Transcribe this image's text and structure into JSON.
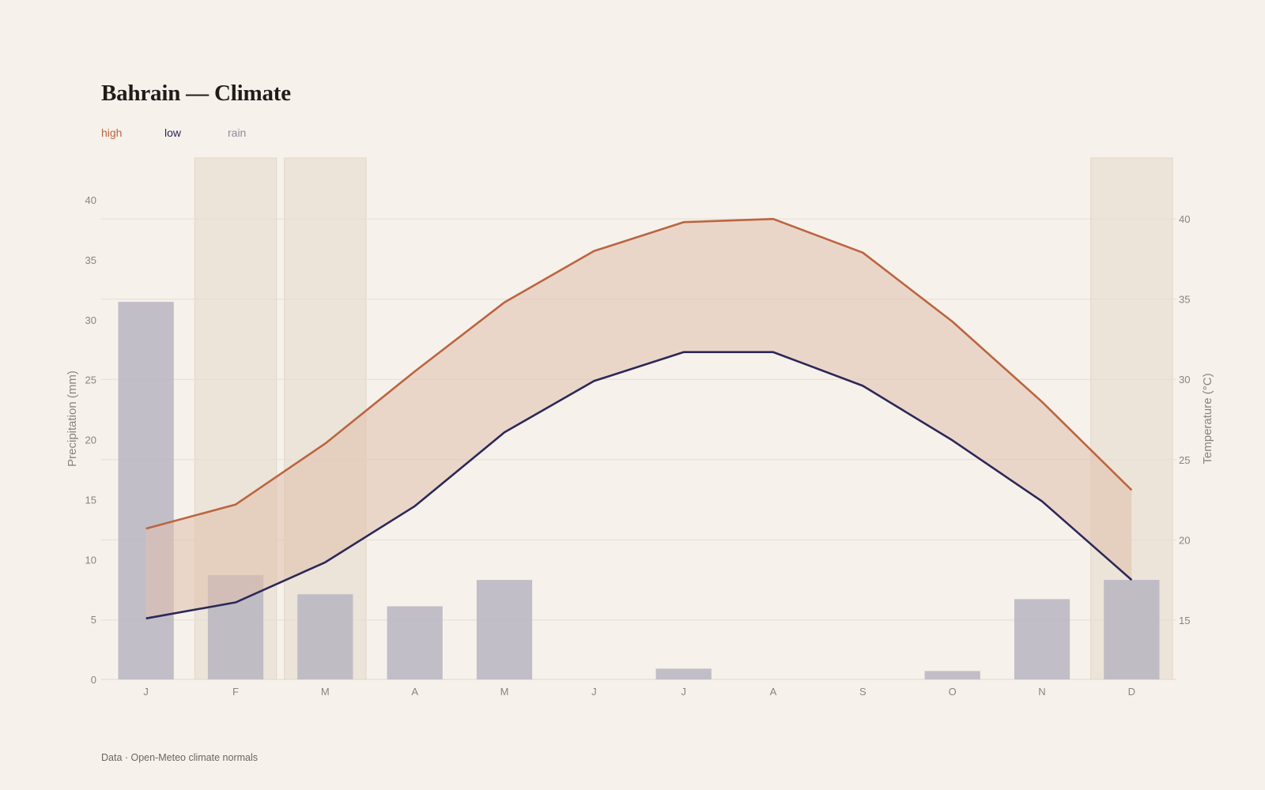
{
  "title": "Bahrain — Climate",
  "footer": "Data · Open-Meteo climate normals",
  "colors": {
    "background": "#f6f1ea",
    "high": "#bb6540",
    "low": "#2c2858",
    "rain": "#8e8aa0",
    "rain_bar": "#c2bfc7",
    "band_fill": "#e0bfad",
    "highlight": "#ece4d8",
    "grid": "#e3ddd4"
  },
  "legend": [
    {
      "label": "high",
      "color": "#bb6540"
    },
    {
      "label": "low",
      "color": "#2c2858"
    },
    {
      "label": "rain",
      "color": "#8e8aa0"
    }
  ],
  "chart_data": {
    "type": "bar+line",
    "categories": [
      "J",
      "F",
      "M",
      "A",
      "M",
      "J",
      "J",
      "A",
      "S",
      "O",
      "N",
      "D"
    ],
    "highlighted_months": [
      1,
      2,
      11
    ],
    "y_left": {
      "label": "Precipitation (mm)",
      "range": [
        0,
        43.5
      ],
      "ticks": [
        0,
        5,
        10,
        15,
        20,
        25,
        30,
        35,
        40
      ]
    },
    "y_right": {
      "label": "Temperature (°C)",
      "range": [
        11.3,
        43.8
      ],
      "ticks": [
        15,
        20,
        25,
        30,
        35,
        40
      ]
    },
    "series": [
      {
        "name": "rain",
        "type": "bar",
        "axis": "left",
        "values": [
          31.5,
          8.7,
          7.1,
          6.1,
          8.3,
          0,
          0.9,
          0,
          0,
          0.7,
          6.7,
          8.3
        ]
      },
      {
        "name": "high",
        "type": "line",
        "axis": "right",
        "values": [
          20.7,
          22.2,
          26.0,
          30.5,
          34.8,
          38.0,
          39.8,
          40.0,
          37.9,
          33.6,
          28.6,
          23.1
        ]
      },
      {
        "name": "low",
        "type": "line",
        "axis": "right",
        "values": [
          15.1,
          16.1,
          18.6,
          22.1,
          26.7,
          29.9,
          31.7,
          31.7,
          29.6,
          26.2,
          22.4,
          17.5
        ]
      }
    ],
    "grid": true,
    "legend_position": "top-left"
  }
}
